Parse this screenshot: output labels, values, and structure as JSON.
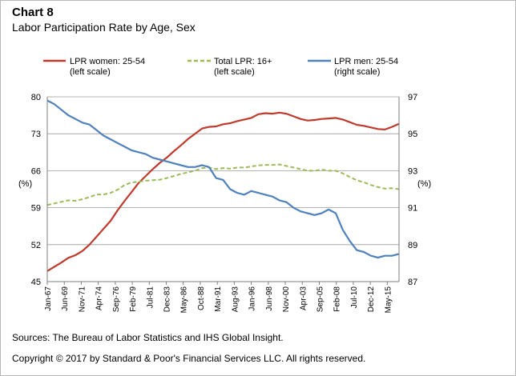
{
  "header": {
    "chart_number": "Chart 8",
    "title": "Labor Participation Rate by Age, Sex"
  },
  "footer": {
    "source": "Sources: The Bureau of Labor Statistics and IHS Global Insight.",
    "copyright": "Copyright © 2017 by Standard & Poor's Financial Services LLC. All rights reserved."
  },
  "chart_data": {
    "type": "line",
    "title": "Labor Participation Rate by Age, Sex",
    "ylabel_left": "(%)",
    "ylabel_right": "(%)",
    "ylim_left": [
      45,
      80
    ],
    "ylim_right": [
      87,
      97
    ],
    "yticks_left": [
      "80",
      "73",
      "66",
      "59",
      "52",
      "45"
    ],
    "yticks_right": [
      "97",
      "95",
      "93",
      "91",
      "89",
      "87"
    ],
    "xlim": [
      1967.0,
      2017.0
    ],
    "xticks": [
      {
        "label": "Jan-67",
        "x": 1967.0
      },
      {
        "label": "Jun-69",
        "x": 1969.42
      },
      {
        "label": "Nov-71",
        "x": 1971.83
      },
      {
        "label": "Apr-74",
        "x": 1974.25
      },
      {
        "label": "Sep-76",
        "x": 1976.67
      },
      {
        "label": "Feb-79",
        "x": 1979.08
      },
      {
        "label": "Jul-81",
        "x": 1981.5
      },
      {
        "label": "Dec-83",
        "x": 1983.92
      },
      {
        "label": "May-86",
        "x": 1986.33
      },
      {
        "label": "Oct-88",
        "x": 1988.75
      },
      {
        "label": "Mar-91",
        "x": 1991.17
      },
      {
        "label": "Aug-93",
        "x": 1993.58
      },
      {
        "label": "Jan-96",
        "x": 1996.0
      },
      {
        "label": "Jun-98",
        "x": 1998.42
      },
      {
        "label": "Nov-00",
        "x": 2000.83
      },
      {
        "label": "Apr-03",
        "x": 2003.25
      },
      {
        "label": "Sep-05",
        "x": 2005.67
      },
      {
        "label": "Feb-08",
        "x": 2008.08
      },
      {
        "label": "Jul-10",
        "x": 2010.5
      },
      {
        "label": "Dec-12",
        "x": 2012.92
      },
      {
        "label": "May-15",
        "x": 2015.33
      }
    ],
    "series": [
      {
        "name": "LPR women: 25-54",
        "legend_note": "(left scale)",
        "axis": "left",
        "color": "#c0392b",
        "style": "solid",
        "x": [
          1967,
          1968,
          1969,
          1970,
          1971,
          1972,
          1973,
          1974,
          1975,
          1976,
          1977,
          1978,
          1979,
          1980,
          1981,
          1982,
          1983,
          1984,
          1985,
          1986,
          1987,
          1988,
          1989,
          1990,
          1991,
          1992,
          1993,
          1994,
          1995,
          1996,
          1997,
          1998,
          1999,
          2000,
          2001,
          2002,
          2003,
          2004,
          2005,
          2006,
          2007,
          2008,
          2009,
          2010,
          2011,
          2012,
          2013,
          2014,
          2015,
          2016,
          2017
        ],
        "values": [
          47.0,
          47.8,
          48.6,
          49.5,
          50.0,
          50.8,
          52.0,
          53.5,
          55.0,
          56.5,
          58.5,
          60.3,
          62.0,
          63.7,
          65.0,
          66.3,
          67.5,
          68.5,
          69.7,
          70.8,
          72.0,
          73.0,
          74.0,
          74.3,
          74.4,
          74.8,
          75.0,
          75.4,
          75.7,
          76.0,
          76.7,
          76.9,
          76.8,
          77.0,
          76.8,
          76.3,
          75.8,
          75.5,
          75.6,
          75.8,
          75.9,
          76.0,
          75.7,
          75.2,
          74.7,
          74.5,
          74.2,
          73.9,
          73.8,
          74.3,
          74.9
        ]
      },
      {
        "name": "Total LPR: 16+",
        "legend_note": "(left scale)",
        "axis": "left",
        "color": "#9bbb59",
        "style": "dashed",
        "x": [
          1967,
          1968,
          1969,
          1970,
          1971,
          1972,
          1973,
          1974,
          1975,
          1976,
          1977,
          1978,
          1979,
          1980,
          1981,
          1982,
          1983,
          1984,
          1985,
          1986,
          1987,
          1988,
          1989,
          1990,
          1991,
          1992,
          1993,
          1994,
          1995,
          1996,
          1997,
          1998,
          1999,
          2000,
          2001,
          2002,
          2003,
          2004,
          2005,
          2006,
          2007,
          2008,
          2009,
          2010,
          2011,
          2012,
          2013,
          2014,
          2015,
          2016,
          2017
        ],
        "values": [
          59.5,
          59.8,
          60.1,
          60.4,
          60.3,
          60.6,
          61.0,
          61.5,
          61.5,
          61.8,
          62.4,
          63.3,
          63.8,
          63.9,
          64.1,
          64.2,
          64.3,
          64.6,
          65.0,
          65.4,
          65.7,
          66.0,
          66.5,
          66.6,
          66.3,
          66.5,
          66.4,
          66.6,
          66.6,
          66.8,
          67.0,
          67.1,
          67.1,
          67.2,
          66.9,
          66.6,
          66.3,
          66.0,
          66.0,
          66.2,
          66.0,
          66.0,
          65.5,
          64.8,
          64.2,
          63.8,
          63.3,
          62.9,
          62.6,
          62.7,
          62.5
        ]
      },
      {
        "name": "LPR men: 25-54",
        "legend_note": "(right scale)",
        "axis": "right",
        "color": "#4f81bd",
        "style": "solid",
        "x": [
          1967,
          1968,
          1969,
          1970,
          1971,
          1972,
          1973,
          1974,
          1975,
          1976,
          1977,
          1978,
          1979,
          1980,
          1981,
          1982,
          1983,
          1984,
          1985,
          1986,
          1987,
          1988,
          1989,
          1990,
          1991,
          1992,
          1993,
          1994,
          1995,
          1996,
          1997,
          1998,
          1999,
          2000,
          2001,
          2002,
          2003,
          2004,
          2005,
          2006,
          2007,
          2008,
          2009,
          2010,
          2011,
          2012,
          2013,
          2014,
          2015,
          2016,
          2017
        ],
        "values": [
          96.8,
          96.6,
          96.3,
          96.0,
          95.8,
          95.6,
          95.5,
          95.2,
          94.9,
          94.7,
          94.5,
          94.3,
          94.1,
          94.0,
          93.9,
          93.7,
          93.6,
          93.5,
          93.4,
          93.3,
          93.2,
          93.2,
          93.3,
          93.2,
          92.6,
          92.5,
          92.0,
          91.8,
          91.7,
          91.9,
          91.8,
          91.7,
          91.6,
          91.4,
          91.3,
          91.0,
          90.8,
          90.7,
          90.6,
          90.7,
          90.9,
          90.7,
          89.8,
          89.2,
          88.7,
          88.6,
          88.4,
          88.3,
          88.4,
          88.4,
          88.5
        ]
      }
    ],
    "legend_position": "top",
    "grid": "horizontal"
  }
}
